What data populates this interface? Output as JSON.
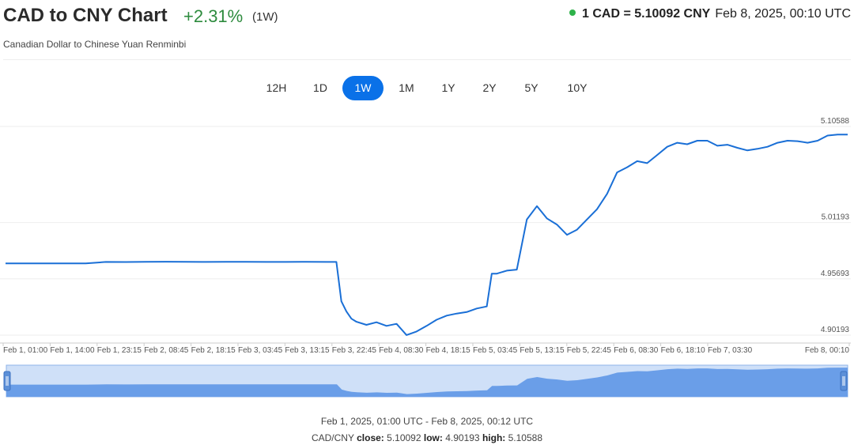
{
  "header": {
    "title": "CAD to CNY Chart",
    "change": "+2.31%",
    "period": "(1W)",
    "subtitle": "Canadian Dollar to Chinese Yuan Renminbi",
    "rate": "1 CAD = 5.10092 CNY",
    "timestamp": "Feb 8, 2025, 00:10 UTC"
  },
  "ranges": [
    {
      "label": "12H",
      "active": false
    },
    {
      "label": "1D",
      "active": false
    },
    {
      "label": "1W",
      "active": true
    },
    {
      "label": "1M",
      "active": false
    },
    {
      "label": "1Y",
      "active": false
    },
    {
      "label": "2Y",
      "active": false
    },
    {
      "label": "5Y",
      "active": false
    },
    {
      "label": "10Y",
      "active": false
    }
  ],
  "colors": {
    "line": "#1a6fd6",
    "navigator_fill": "#6a9ee8",
    "navigator_bg": "#cfe0f8",
    "accent": "#0a71e8",
    "positive": "#2e8b3e"
  },
  "chart_data": {
    "type": "line",
    "series": [
      {
        "x": [
          0,
          4,
          8,
          12,
          16,
          20,
          24,
          28,
          32,
          36,
          40,
          44,
          48,
          52,
          56,
          60,
          64,
          66,
          67,
          68,
          69,
          70,
          72,
          74,
          76,
          78,
          80,
          82,
          84,
          86,
          88,
          90,
          92,
          94,
          96,
          97,
          98,
          100,
          102,
          104,
          106,
          108,
          110,
          112,
          114,
          116,
          118,
          120,
          122,
          124,
          126,
          128,
          130,
          132,
          134,
          136,
          138,
          140,
          142,
          144,
          146,
          148,
          150,
          152,
          154,
          156,
          158,
          160,
          162,
          164,
          166,
          168
        ],
        "y": [
          4.972,
          4.972,
          4.972,
          4.972,
          4.972,
          4.9735,
          4.9734,
          4.9736,
          4.9737,
          4.9736,
          4.9735,
          4.9736,
          4.9736,
          4.9735,
          4.9735,
          4.9736,
          4.9735,
          4.9735,
          4.935,
          4.925,
          4.918,
          4.915,
          4.912,
          4.9145,
          4.911,
          4.913,
          4.902,
          4.9055,
          4.911,
          4.917,
          4.921,
          4.923,
          4.9245,
          4.928,
          4.93,
          4.962,
          4.962,
          4.965,
          4.966,
          5.015,
          5.028,
          5.016,
          5.01,
          5.0,
          5.005,
          5.015,
          5.025,
          5.04,
          5.061,
          5.066,
          5.072,
          5.07,
          5.078,
          5.086,
          5.09,
          5.0885,
          5.092,
          5.092,
          5.087,
          5.088,
          5.085,
          5.0825,
          5.084,
          5.086,
          5.09,
          5.092,
          5.0915,
          5.09,
          5.092,
          5.097,
          5.098,
          5.098
        ]
      }
    ],
    "x_tick_labels": [
      "Feb 1, 01:00",
      "Feb 1, 14:00",
      "Feb 1, 23:15",
      "Feb 2, 08:45",
      "Feb 2, 18:15",
      "Feb 3, 03:45",
      "Feb 3, 13:15",
      "Feb 3, 22:45",
      "Feb 4, 08:30",
      "Feb 4, 18:15",
      "Feb 5, 03:45",
      "Feb 5, 13:15",
      "Feb 5, 22:45",
      "Feb 6, 08:30",
      "Feb 6, 18:10",
      "Feb 7, 03:30",
      "Feb 8, 00:10"
    ],
    "y_ticks": [
      "5.10588",
      "5.01193",
      "4.95693",
      "4.90193"
    ],
    "ylim": [
      4.90193,
      5.10588
    ],
    "grid": true
  },
  "footer": {
    "range": "Feb 1, 2025, 01:00 UTC - Feb 8, 2025, 00:12 UTC",
    "pair": "CAD/CNY",
    "close_label": "close:",
    "close": "5.10092",
    "low_label": "low:",
    "low": "4.90193",
    "high_label": "high:",
    "high": "5.10588"
  }
}
